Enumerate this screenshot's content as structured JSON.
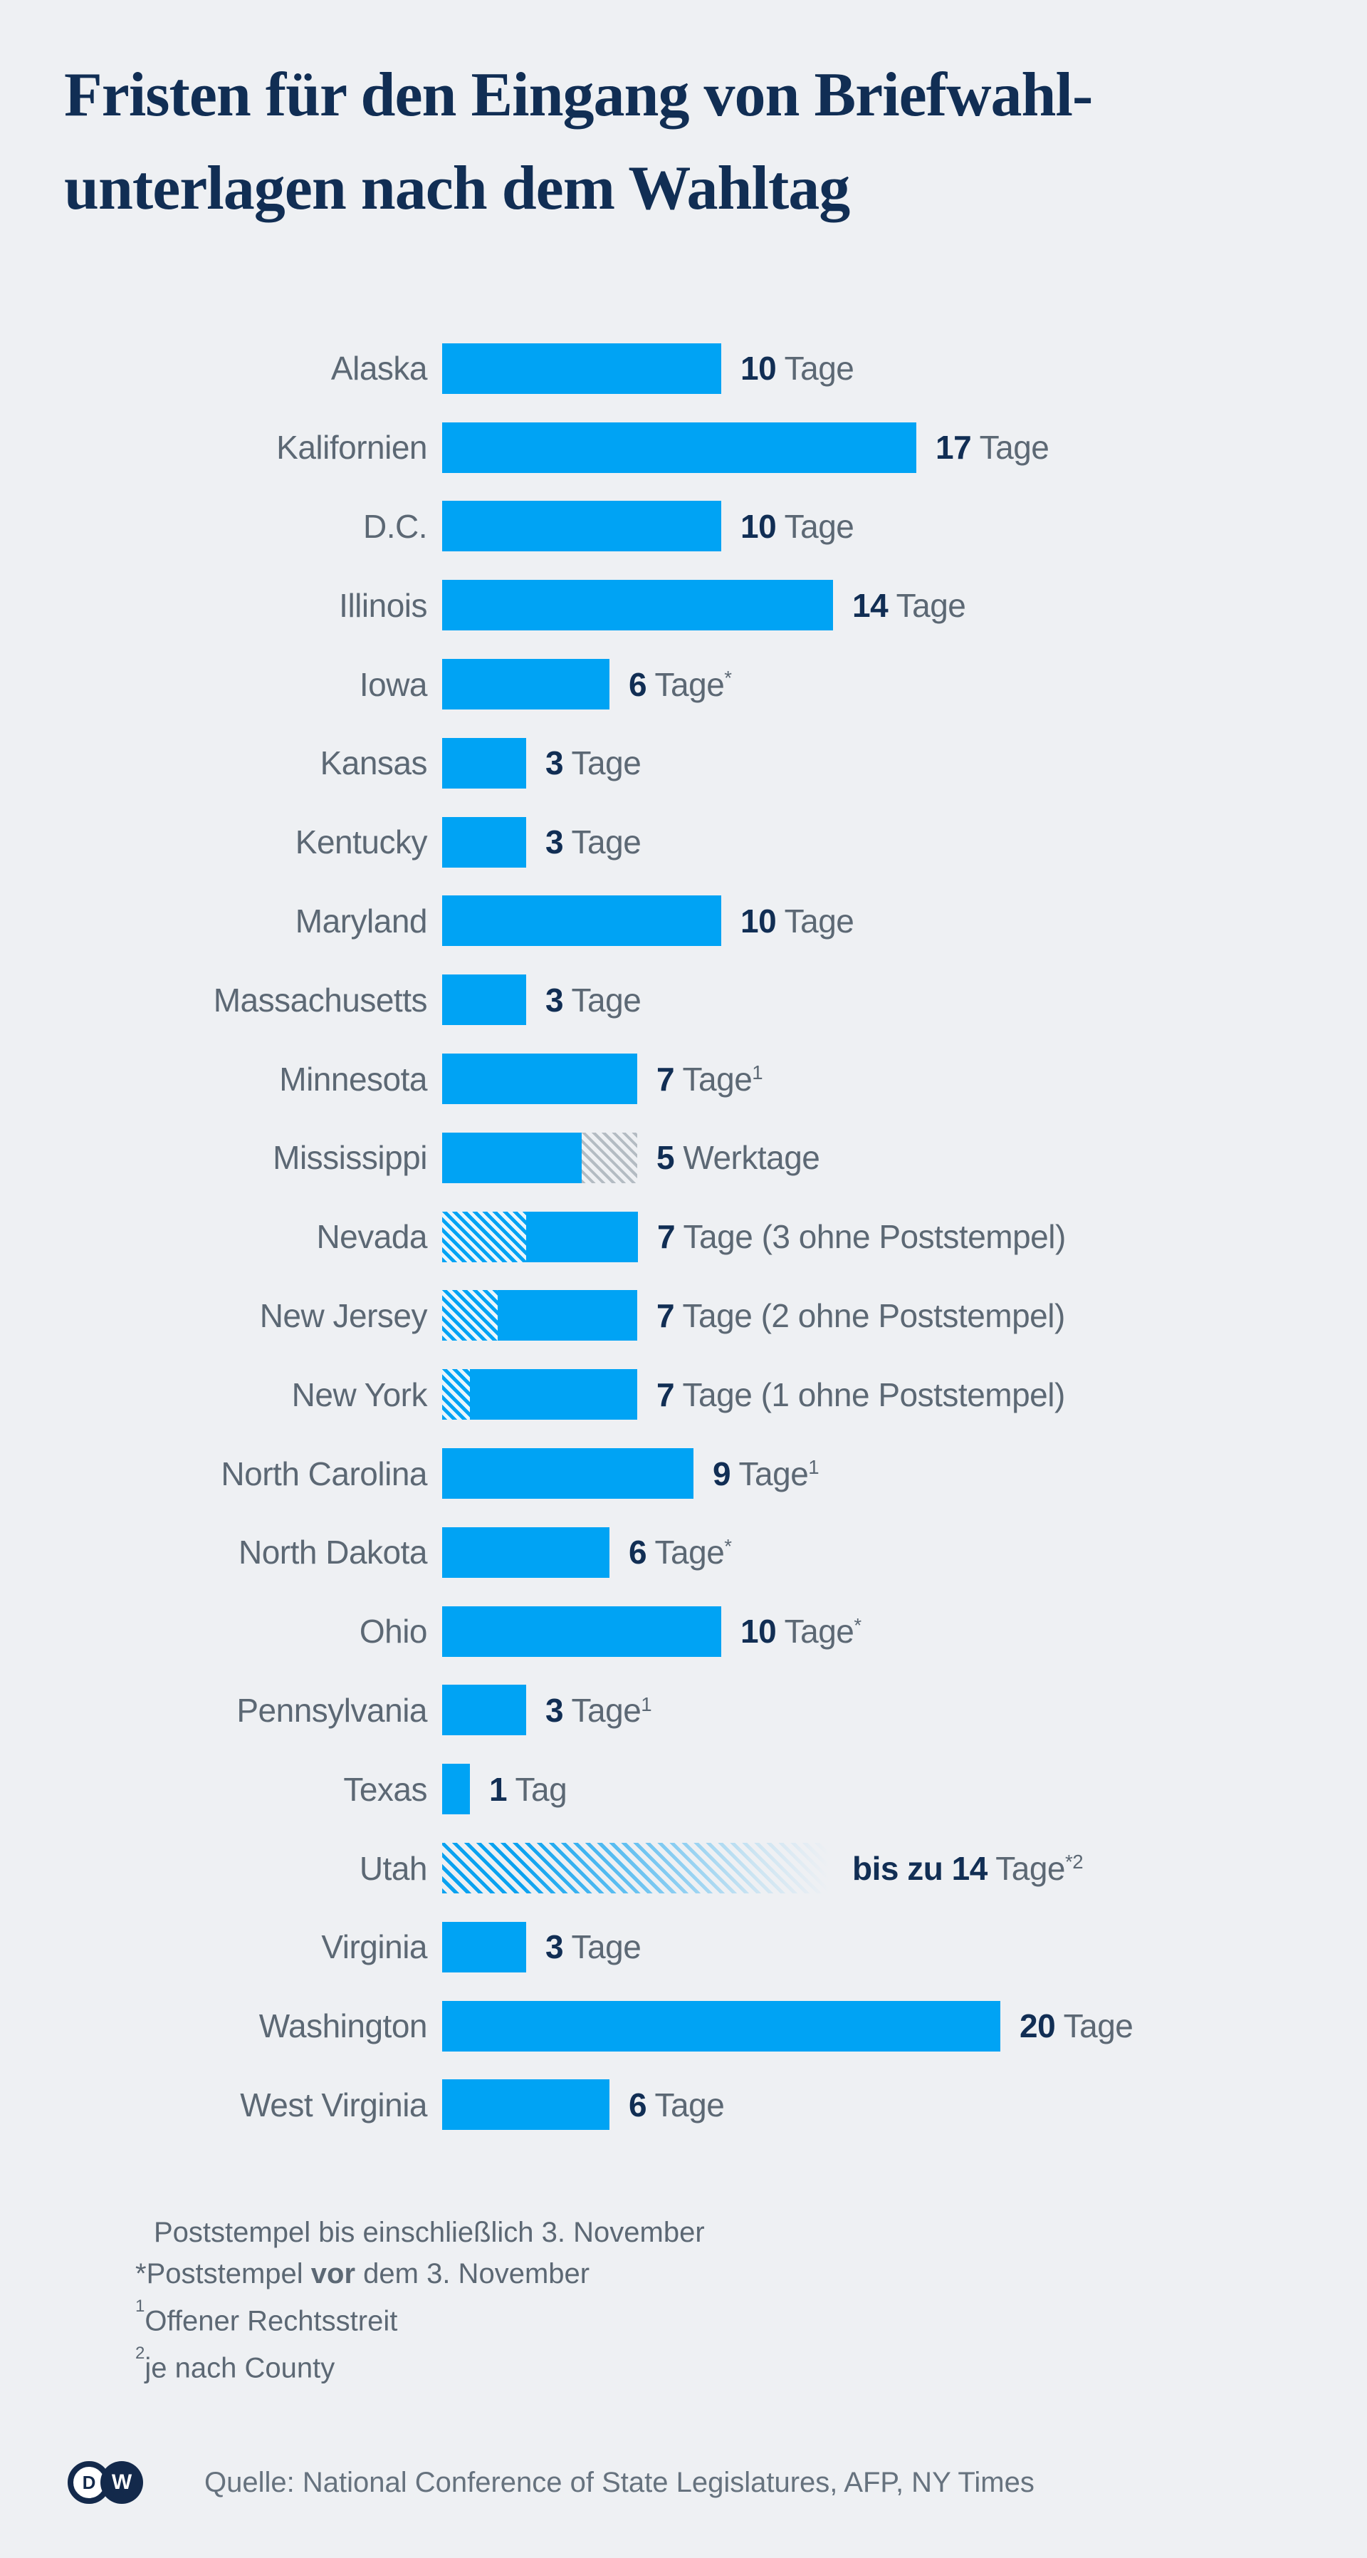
{
  "title": {
    "line1": "Fristen für den Eingang von Briefwahl-",
    "line2": "unterlagen nach dem Wahltag"
  },
  "chart_data": {
    "type": "bar",
    "orientation": "horizontal",
    "title": "Fristen für den Eingang von Briefwahlunterlagen nach dem Wahltag",
    "value_unit": "Tage",
    "x_range_days": [
      0,
      20
    ],
    "grid": false,
    "legend": false,
    "categories": [
      "Alaska",
      "Kalifornien",
      "D.C.",
      "Illinois",
      "Iowa",
      "Kansas",
      "Kentucky",
      "Maryland",
      "Massachusetts",
      "Minnesota",
      "Mississippi",
      "Nevada",
      "New Jersey",
      "New York",
      "North Carolina",
      "North Dakota",
      "Ohio",
      "Pennsylvania",
      "Texas",
      "Utah",
      "Virginia",
      "Washington",
      "West Virginia"
    ],
    "values": [
      10,
      17,
      10,
      14,
      6,
      3,
      3,
      10,
      3,
      7,
      5,
      7,
      7,
      7,
      9,
      6,
      10,
      3,
      1,
      14,
      3,
      20,
      6
    ],
    "rows": [
      {
        "label": "Alaska",
        "bold": "10",
        "rest": "Tage",
        "sup": "",
        "segments": [
          {
            "style": "solid",
            "days": 10
          }
        ]
      },
      {
        "label": "Kalifornien",
        "bold": "17",
        "rest": "Tage",
        "sup": "",
        "segments": [
          {
            "style": "solid",
            "days": 17
          }
        ]
      },
      {
        "label": "D.C.",
        "bold": "10",
        "rest": "Tage",
        "sup": "",
        "segments": [
          {
            "style": "solid",
            "days": 10
          }
        ]
      },
      {
        "label": "Illinois",
        "bold": "14",
        "rest": "Tage",
        "sup": "",
        "segments": [
          {
            "style": "solid",
            "days": 14
          }
        ]
      },
      {
        "label": "Iowa",
        "bold": "6",
        "rest": "Tage",
        "sup": "*",
        "segments": [
          {
            "style": "solid",
            "days": 6
          }
        ]
      },
      {
        "label": "Kansas",
        "bold": "3",
        "rest": "Tage",
        "sup": "",
        "segments": [
          {
            "style": "solid",
            "days": 3
          }
        ]
      },
      {
        "label": "Kentucky",
        "bold": "3",
        "rest": "Tage",
        "sup": "",
        "segments": [
          {
            "style": "solid",
            "days": 3
          }
        ]
      },
      {
        "label": "Maryland",
        "bold": "10",
        "rest": "Tage",
        "sup": "",
        "segments": [
          {
            "style": "solid",
            "days": 10
          }
        ]
      },
      {
        "label": "Massachusetts",
        "bold": "3",
        "rest": "Tage",
        "sup": "",
        "segments": [
          {
            "style": "solid",
            "days": 3
          }
        ]
      },
      {
        "label": "Minnesota",
        "bold": "7",
        "rest": "Tage",
        "sup": "1",
        "segments": [
          {
            "style": "solid",
            "days": 7
          }
        ]
      },
      {
        "label": "Mississippi",
        "bold": "5",
        "rest": "Werktage",
        "sup": "",
        "segments": [
          {
            "style": "solid",
            "days": 5
          },
          {
            "style": "hatch-gray",
            "days": 2
          }
        ]
      },
      {
        "label": "Nevada",
        "bold": "7",
        "rest": "Tage (3 ohne Poststempel)",
        "sup": "",
        "segments": [
          {
            "style": "hatch-blue",
            "days": 3
          },
          {
            "style": "solid",
            "days": 4
          }
        ]
      },
      {
        "label": "New Jersey",
        "bold": "7",
        "rest": "Tage (2 ohne Poststempel)",
        "sup": "",
        "segments": [
          {
            "style": "hatch-blue",
            "days": 2
          },
          {
            "style": "solid",
            "days": 5
          }
        ]
      },
      {
        "label": "New York",
        "bold": "7",
        "rest": "Tage (1 ohne Poststempel)",
        "sup": "",
        "segments": [
          {
            "style": "hatch-blue",
            "days": 1
          },
          {
            "style": "solid",
            "days": 6
          }
        ]
      },
      {
        "label": "North Carolina",
        "bold": "9",
        "rest": "Tage",
        "sup": "1",
        "segments": [
          {
            "style": "solid",
            "days": 9
          }
        ]
      },
      {
        "label": "North Dakota",
        "bold": "6",
        "rest": "Tage",
        "sup": "*",
        "segments": [
          {
            "style": "solid",
            "days": 6
          }
        ]
      },
      {
        "label": "Ohio",
        "bold": "10",
        "rest": "Tage",
        "sup": "*",
        "segments": [
          {
            "style": "solid",
            "days": 10
          }
        ]
      },
      {
        "label": "Pennsylvania",
        "bold": "3",
        "rest": "Tage",
        "sup": "1",
        "segments": [
          {
            "style": "solid",
            "days": 3
          }
        ]
      },
      {
        "label": "Texas",
        "bold": "1",
        "rest": "Tag",
        "sup": "",
        "segments": [
          {
            "style": "solid",
            "days": 1
          }
        ]
      },
      {
        "label": "Utah",
        "bold": "bis zu 14",
        "rest": "Tage",
        "sup": "*2",
        "segments": [
          {
            "style": "hatch-fade",
            "days": 14
          }
        ]
      },
      {
        "label": "Virginia",
        "bold": "3",
        "rest": "Tage",
        "sup": "",
        "segments": [
          {
            "style": "solid",
            "days": 3
          }
        ]
      },
      {
        "label": "Washington",
        "bold": "20",
        "rest": "Tage",
        "sup": "",
        "segments": [
          {
            "style": "solid",
            "days": 20
          }
        ]
      },
      {
        "label": "West Virginia",
        "bold": "6",
        "rest": "Tage",
        "sup": "",
        "segments": [
          {
            "style": "solid",
            "days": 6
          }
        ]
      }
    ]
  },
  "footnotes": [
    {
      "marker": "",
      "pre": "Poststempel bis einschließlich 3. November",
      "bold": "",
      "post": ""
    },
    {
      "marker": "*",
      "pre": "Poststempel ",
      "bold": "vor",
      "post": " dem 3. November"
    },
    {
      "marker": "1",
      "pre": "Offener Rechtsstreit",
      "bold": "",
      "post": ""
    },
    {
      "marker": "2",
      "pre": "je nach County",
      "bold": "",
      "post": ""
    }
  ],
  "source": {
    "label": "Quelle: National Conference of State Legislatures, AFP, NY Times"
  },
  "logo": {
    "d": "D",
    "w": "W"
  },
  "colors": {
    "background": "#eef0f3",
    "bar_blue": "#00a3f4",
    "navy": "#112e54",
    "text_gray": "#5c6874",
    "hatch_gray": "#b4bcc3",
    "logo_navy": "#13294b"
  }
}
